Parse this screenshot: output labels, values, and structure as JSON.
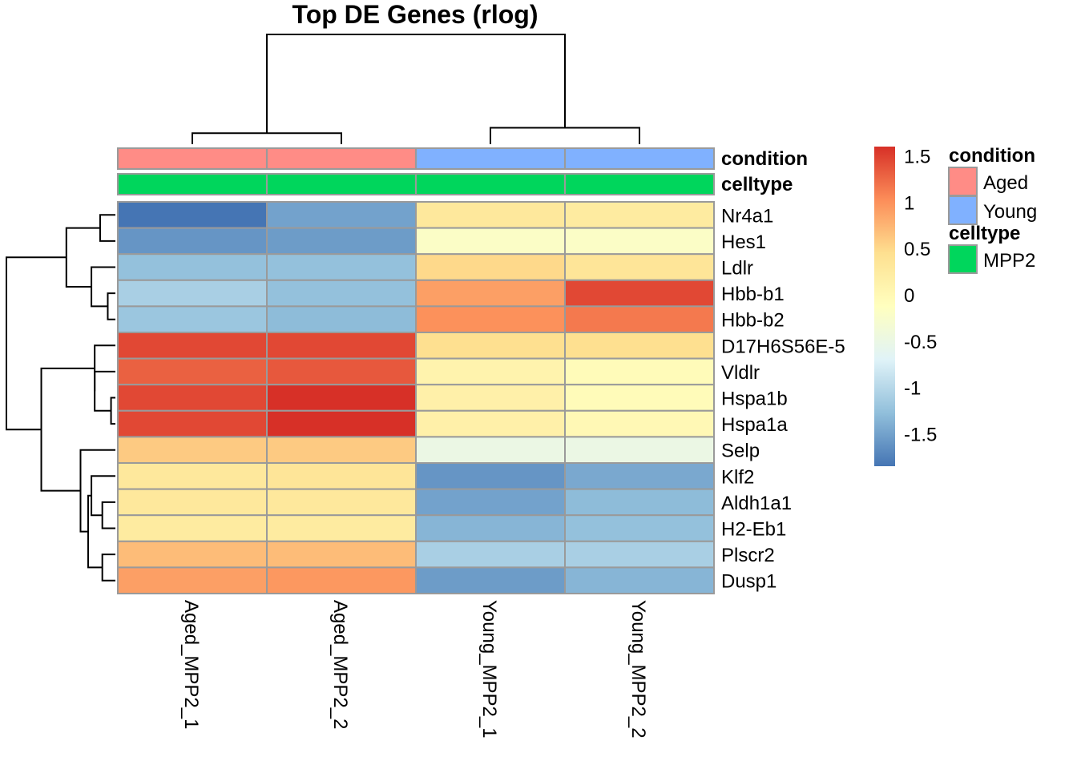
{
  "chart_data": {
    "type": "heatmap",
    "title": "Top DE Genes (rlog)",
    "columns": [
      "Aged_MPP2_1",
      "Aged_MPP2_2",
      "Young_MPP2_1",
      "Young_MPP2_2"
    ],
    "rows": [
      "Nr4a1",
      "Hes1",
      "Ldlr",
      "Hbb-b1",
      "Hbb-b2",
      "D17H6S56E-5",
      "Vldlr",
      "Hspa1b",
      "Hspa1a",
      "Selp",
      "Klf2",
      "Aldh1a1",
      "H2-Eb1",
      "Plscr2",
      "Dusp1"
    ],
    "values": [
      [
        -1.85,
        -1.5,
        0.3,
        0.25
      ],
      [
        -1.6,
        -1.55,
        -0.2,
        -0.2
      ],
      [
        -1.25,
        -1.25,
        0.5,
        0.35
      ],
      [
        -1.1,
        -1.25,
        0.9,
        1.45
      ],
      [
        -1.2,
        -1.3,
        1.0,
        1.15
      ],
      [
        1.45,
        1.45,
        0.45,
        0.45
      ],
      [
        1.3,
        1.35,
        0.1,
        -0.05
      ],
      [
        1.45,
        1.6,
        0.15,
        -0.05
      ],
      [
        1.45,
        1.6,
        0.15,
        0.0
      ],
      [
        0.6,
        0.6,
        -0.5,
        -0.5
      ],
      [
        0.3,
        0.35,
        -1.6,
        -1.45
      ],
      [
        0.3,
        0.3,
        -1.5,
        -1.3
      ],
      [
        0.25,
        0.25,
        -1.35,
        -1.25
      ],
      [
        0.7,
        0.7,
        -1.1,
        -1.1
      ],
      [
        0.9,
        0.95,
        -1.55,
        -1.35
      ]
    ],
    "color_scale": {
      "min": -1.85,
      "max": 1.6,
      "stops": [
        "#4575B4",
        "#91BFDB",
        "#E0F3F8",
        "#FFFFBF",
        "#FEE090",
        "#FC8D59",
        "#D73027"
      ],
      "ticks": [
        "1.5",
        "1",
        "0.5",
        "0",
        "-0.5",
        "-1",
        "-1.5"
      ],
      "tick_values": [
        1.5,
        1,
        0.5,
        0,
        -0.5,
        -1,
        -1.5
      ]
    },
    "annotations": {
      "condition": {
        "label": "condition",
        "values": [
          "Aged",
          "Aged",
          "Young",
          "Young"
        ],
        "levels": [
          {
            "name": "Aged",
            "color": "#FF8C86"
          },
          {
            "name": "Young",
            "color": "#80B1FF"
          }
        ]
      },
      "celltype": {
        "label": "celltype",
        "values": [
          "MPP2",
          "MPP2",
          "MPP2",
          "MPP2"
        ],
        "levels": [
          {
            "name": "MPP2",
            "color": "#00D65C"
          }
        ]
      }
    },
    "column_dendrogram": [
      {
        "a": 0,
        "b": 1,
        "height": 0.1
      },
      {
        "a": 2,
        "b": 3,
        "height": 0.15
      },
      {
        "a": 4,
        "b": 5,
        "height": 1.0
      }
    ],
    "row_dendrogram": [
      {
        "a": 0,
        "b": 1,
        "height": 0.14
      },
      {
        "a": 3,
        "b": 4,
        "height": 0.07
      },
      {
        "a": 2,
        "b": 16,
        "height": 0.22
      },
      {
        "a": 15,
        "b": 17,
        "height": 0.45
      },
      {
        "a": 7,
        "b": 8,
        "height": 0.04
      },
      {
        "a": 6,
        "b": 19,
        "height": 0.19
      },
      {
        "a": 5,
        "b": 20,
        "height": 0.19
      },
      {
        "a": 11,
        "b": 12,
        "height": 0.12
      },
      {
        "a": 13,
        "b": 14,
        "height": 0.12
      },
      {
        "a": 10,
        "b": 22,
        "height": 0.22
      },
      {
        "a": 23,
        "b": 24,
        "height": 0.25
      },
      {
        "a": 9,
        "b": 25,
        "height": 0.32
      },
      {
        "a": 21,
        "b": 26,
        "height": 0.68
      },
      {
        "a": 18,
        "b": 27,
        "height": 1.0
      }
    ]
  }
}
